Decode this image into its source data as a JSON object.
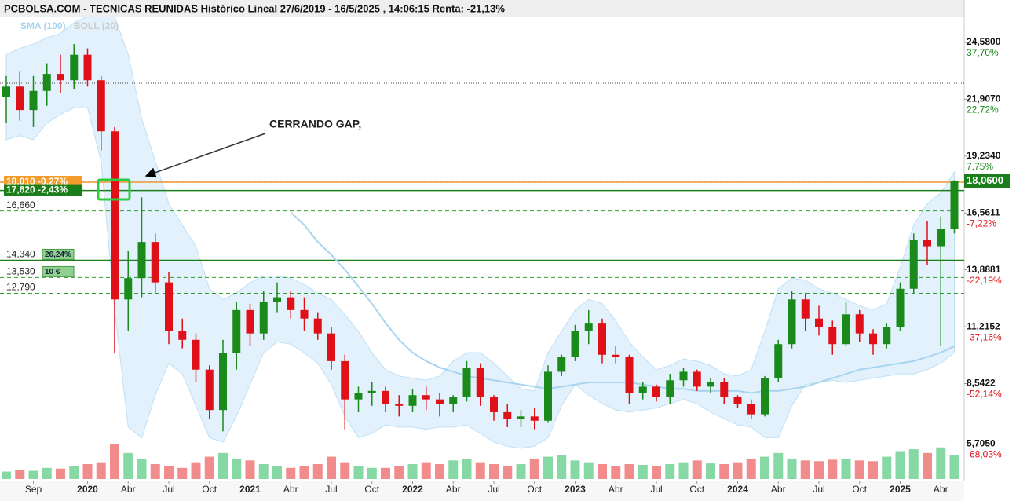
{
  "chart_data": {
    "type": "candlestick",
    "title": "PCBOLSA.COM - TECNICAS REUNIDAS Histórico Lineal 27/6/2019 - 16/5/2025 , 14:06:15 Renta: -21,13%",
    "annotation": "CERRANDO GAP,",
    "up_color": "#1a8a1a",
    "down_color": "#e01019",
    "volume_up_color": "#86d9a4",
    "volume_down_color": "#f28b8b",
    "x": [
      "2019-07",
      "2019-08",
      "2019-09",
      "2019-10",
      "2019-11",
      "2019-12",
      "2020-01",
      "2020-02",
      "2020-03",
      "2020-04",
      "2020-05",
      "2020-06",
      "2020-07",
      "2020-08",
      "2020-09",
      "2020-10",
      "2020-11",
      "2020-12",
      "2021-01",
      "2021-02",
      "2021-03",
      "2021-04",
      "2021-05",
      "2021-06",
      "2021-07",
      "2021-08",
      "2021-09",
      "2021-10",
      "2021-11",
      "2021-12",
      "2022-01",
      "2022-02",
      "2022-03",
      "2022-04",
      "2022-05",
      "2022-06",
      "2022-07",
      "2022-08",
      "2022-09",
      "2022-10",
      "2022-11",
      "2022-12",
      "2023-01",
      "2023-02",
      "2023-03",
      "2023-04",
      "2023-05",
      "2023-06",
      "2023-07",
      "2023-08",
      "2023-09",
      "2023-10",
      "2023-11",
      "2023-12",
      "2024-01",
      "2024-02",
      "2024-03",
      "2024-04",
      "2024-05",
      "2024-06",
      "2024-07",
      "2024-08",
      "2024-09",
      "2024-10",
      "2024-11",
      "2024-12",
      "2025-01",
      "2025-02",
      "2025-03",
      "2025-04",
      "2025-05"
    ],
    "open": [
      22.0,
      22.5,
      21.4,
      22.3,
      23.1,
      22.8,
      24.0,
      22.8,
      20.4,
      12.5,
      13.5,
      15.2,
      13.3,
      11.0,
      10.6,
      9.2,
      7.3,
      10.0,
      12.0,
      10.9,
      12.4,
      12.6,
      12.0,
      11.6,
      10.9,
      9.6,
      7.8,
      8.1,
      8.2,
      7.6,
      7.5,
      8.0,
      7.8,
      7.6,
      7.9,
      9.3,
      7.9,
      7.2,
      6.9,
      7.0,
      6.8,
      9.1,
      9.8,
      11.0,
      11.4,
      9.9,
      9.8,
      8.1,
      8.4,
      7.9,
      8.7,
      9.1,
      8.4,
      8.6,
      7.9,
      7.6,
      7.1,
      8.8,
      10.4,
      12.5,
      11.6,
      11.2,
      10.4,
      11.8,
      10.9,
      10.4,
      11.2,
      13.0,
      15.3,
      15.0,
      15.8
    ],
    "high": [
      23.0,
      23.2,
      23.0,
      23.6,
      24.0,
      24.5,
      24.3,
      23.0,
      20.6,
      14.8,
      17.3,
      15.6,
      13.8,
      11.6,
      10.9,
      9.4,
      10.6,
      12.4,
      12.3,
      12.9,
      13.3,
      12.9,
      12.6,
      11.9,
      11.2,
      9.9,
      8.4,
      8.6,
      8.4,
      8.0,
      8.3,
      8.4,
      8.1,
      8.0,
      9.6,
      9.5,
      8.0,
      7.6,
      7.3,
      7.4,
      9.4,
      9.9,
      11.3,
      12.0,
      11.6,
      10.3,
      9.9,
      8.6,
      8.5,
      9.0,
      9.3,
      9.2,
      8.8,
      8.8,
      8.0,
      7.8,
      8.9,
      10.6,
      12.9,
      12.8,
      12.2,
      11.5,
      12.4,
      12.0,
      11.1,
      11.4,
      13.3,
      15.6,
      16.2,
      16.4,
      18.1
    ],
    "low": [
      20.8,
      20.9,
      20.6,
      21.6,
      22.2,
      22.4,
      22.5,
      19.5,
      10.0,
      11.0,
      12.6,
      12.8,
      10.4,
      10.2,
      8.6,
      6.9,
      6.3,
      9.2,
      10.3,
      10.6,
      11.9,
      11.6,
      11.0,
      10.6,
      9.2,
      6.4,
      7.2,
      7.5,
      7.2,
      7.0,
      7.2,
      7.3,
      7.0,
      7.2,
      7.7,
      7.5,
      6.8,
      6.5,
      6.5,
      6.4,
      6.7,
      8.9,
      9.6,
      10.4,
      9.5,
      9.5,
      7.6,
      7.8,
      7.7,
      7.6,
      8.4,
      8.2,
      8.1,
      7.6,
      7.4,
      6.9,
      7.0,
      8.6,
      10.2,
      11.0,
      10.8,
      9.9,
      10.3,
      10.5,
      9.9,
      10.2,
      11.0,
      12.8,
      14.1,
      10.3,
      15.6
    ],
    "close": [
      22.5,
      21.4,
      22.3,
      23.1,
      22.8,
      24.0,
      22.8,
      20.4,
      12.5,
      13.5,
      15.2,
      13.3,
      11.0,
      10.6,
      9.2,
      7.3,
      10.0,
      12.0,
      10.9,
      12.4,
      12.6,
      12.0,
      11.6,
      10.9,
      9.6,
      7.8,
      8.1,
      8.2,
      7.6,
      7.5,
      8.0,
      7.8,
      7.6,
      7.9,
      9.3,
      7.9,
      7.2,
      6.9,
      7.0,
      6.8,
      9.1,
      9.8,
      11.0,
      11.4,
      9.9,
      9.8,
      8.1,
      8.4,
      7.9,
      8.7,
      9.1,
      8.4,
      8.6,
      7.9,
      7.6,
      7.1,
      8.8,
      10.4,
      12.5,
      11.6,
      11.2,
      10.4,
      11.8,
      10.9,
      10.4,
      11.2,
      13.0,
      15.3,
      15.0,
      15.8,
      18.06
    ],
    "volume": [
      20,
      25,
      22,
      30,
      28,
      35,
      40,
      45,
      95,
      70,
      55,
      40,
      35,
      30,
      45,
      60,
      70,
      55,
      50,
      40,
      35,
      30,
      35,
      40,
      60,
      45,
      35,
      30,
      30,
      35,
      40,
      45,
      40,
      50,
      55,
      45,
      40,
      35,
      40,
      55,
      60,
      65,
      50,
      45,
      40,
      35,
      40,
      38,
      35,
      40,
      45,
      50,
      42,
      40,
      45,
      55,
      60,
      70,
      55,
      50,
      48,
      52,
      55,
      50,
      48,
      60,
      75,
      80,
      70,
      85,
      65
    ],
    "sma": {
      "name": "SMA (100)",
      "color": "#a8d4f0",
      "values": [
        null,
        null,
        null,
        null,
        null,
        null,
        null,
        null,
        null,
        null,
        null,
        null,
        null,
        null,
        null,
        null,
        null,
        null,
        null,
        null,
        null,
        16.6,
        16.0,
        15.2,
        14.6,
        13.9,
        13.1,
        12.3,
        11.4,
        10.6,
        10.0,
        9.6,
        9.3,
        9.1,
        8.9,
        8.8,
        8.7,
        8.6,
        8.5,
        8.4,
        8.3,
        8.4,
        8.5,
        8.6,
        8.6,
        8.6,
        8.6,
        8.5,
        8.4,
        8.3,
        8.3,
        8.2,
        8.2,
        8.2,
        8.2,
        8.1,
        8.2,
        8.2,
        8.3,
        8.4,
        8.6,
        8.8,
        9.0,
        9.2,
        9.3,
        9.4,
        9.5,
        9.6,
        9.8,
        10.0,
        10.3
      ]
    },
    "bollinger": {
      "name": "BOLL (20)",
      "color": "#d6ebf9",
      "upper": [
        24.0,
        24.3,
        24.5,
        24.8,
        25.0,
        25.5,
        25.8,
        25.8,
        25.8,
        24.0,
        21.0,
        19.0,
        17.0,
        16.0,
        15.0,
        13.0,
        12.5,
        12.8,
        13.3,
        13.6,
        13.6,
        13.5,
        13.2,
        12.8,
        12.5,
        11.8,
        11.0,
        10.0,
        9.2,
        8.9,
        8.8,
        8.7,
        8.9,
        9.6,
        10.0,
        10.0,
        9.5,
        8.9,
        8.3,
        8.2,
        10.0,
        11.0,
        12.0,
        12.5,
        12.3,
        11.5,
        10.5,
        9.8,
        9.2,
        9.4,
        9.7,
        9.6,
        9.4,
        9.0,
        8.9,
        9.2,
        11.0,
        13.0,
        13.5,
        13.4,
        13.0,
        12.8,
        12.5,
        12.2,
        12.0,
        12.3,
        14.0,
        16.0,
        17.0,
        17.5,
        18.5
      ],
      "lower": [
        20.0,
        20.2,
        20.0,
        20.8,
        21.2,
        21.5,
        21.5,
        19.0,
        12.0,
        6.5,
        6.0,
        8.0,
        9.5,
        9.0,
        7.5,
        6.0,
        5.8,
        7.0,
        8.5,
        10.0,
        10.5,
        10.4,
        10.0,
        9.5,
        8.5,
        7.0,
        6.0,
        6.2,
        6.6,
        6.5,
        6.5,
        6.4,
        6.5,
        6.5,
        6.6,
        6.2,
        5.8,
        5.6,
        5.5,
        5.6,
        6.0,
        7.5,
        8.5,
        8.0,
        7.6,
        7.3,
        7.2,
        7.3,
        7.4,
        7.6,
        7.8,
        7.6,
        7.2,
        6.9,
        6.6,
        6.5,
        6.0,
        6.0,
        7.5,
        8.5,
        8.6,
        8.7,
        8.6,
        8.7,
        8.8,
        8.9,
        9.0,
        9.0,
        9.2,
        9.5,
        10.0
      ]
    },
    "ylim": [
      4.06,
      25.76
    ],
    "yticks": [
      {
        "value": 24.58,
        "label": "24,5800"
      },
      {
        "value": 21.907,
        "label": "21,9070"
      },
      {
        "value": 19.234,
        "label": "19,2340"
      },
      {
        "value": 16.5611,
        "label": "16,5611"
      },
      {
        "value": 13.8881,
        "label": "13,8881"
      },
      {
        "value": 11.2152,
        "label": "11,2152"
      },
      {
        "value": 8.5422,
        "label": "8,5422"
      },
      {
        "value": 5.705,
        "label": "5,7050"
      }
    ],
    "ytick_changes": [
      "37,70%",
      "22,72%",
      "7,75%",
      "-7,22%",
      "-22,19%",
      "-37,16%",
      "-52,14%",
      "-68,03%"
    ],
    "xticks": [
      {
        "value": "2019-09",
        "label": "Sep"
      },
      {
        "value": "2020-01",
        "label": "2020"
      },
      {
        "value": "2020-04",
        "label": "Abr"
      },
      {
        "value": "2020-07",
        "label": "Jul"
      },
      {
        "value": "2020-10",
        "label": "Oct"
      },
      {
        "value": "2021-01",
        "label": "2021"
      },
      {
        "value": "2021-04",
        "label": "Abr"
      },
      {
        "value": "2021-07",
        "label": "Jul"
      },
      {
        "value": "2021-10",
        "label": "Oct"
      },
      {
        "value": "2022-01",
        "label": "2022"
      },
      {
        "value": "2022-04",
        "label": "Abr"
      },
      {
        "value": "2022-07",
        "label": "Jul"
      },
      {
        "value": "2022-10",
        "label": "Oct"
      },
      {
        "value": "2023-01",
        "label": "2023"
      },
      {
        "value": "2023-04",
        "label": "Abr"
      },
      {
        "value": "2023-07",
        "label": "Jul"
      },
      {
        "value": "2023-10",
        "label": "Oct"
      },
      {
        "value": "2024-01",
        "label": "2024"
      },
      {
        "value": "2024-04",
        "label": "Abr"
      },
      {
        "value": "2024-07",
        "label": "Jul"
      },
      {
        "value": "2024-10",
        "label": "Oct"
      },
      {
        "value": "2025-01",
        "label": "2025"
      },
      {
        "value": "2025-04",
        "label": "Abr"
      }
    ],
    "levels": [
      {
        "value": 18.01,
        "label": "18,010 -0,27%",
        "style": "box",
        "color": "#f39c2b"
      },
      {
        "value": 17.62,
        "label": "17,620 -2,43%",
        "style": "box",
        "color": "#1a7f1a"
      },
      {
        "value": 16.66,
        "label": "16,660",
        "style": "dashed",
        "color": "#2e9e2e"
      },
      {
        "value": 14.34,
        "label": "14,340",
        "style": "solid",
        "color": "#1a7f1a",
        "badge": "26,24%"
      },
      {
        "value": 13.53,
        "label": "13,530",
        "style": "dashed",
        "color": "#2e9e2e",
        "badge": "10 €"
      },
      {
        "value": 12.79,
        "label": "12,790",
        "style": "dashed",
        "color": "#2e9e2e"
      }
    ],
    "reference_line": {
      "value": 22.66,
      "color": "#444"
    },
    "last_price": {
      "value": 18.06,
      "label": "18,0600",
      "color": "#1a7f1a"
    }
  }
}
